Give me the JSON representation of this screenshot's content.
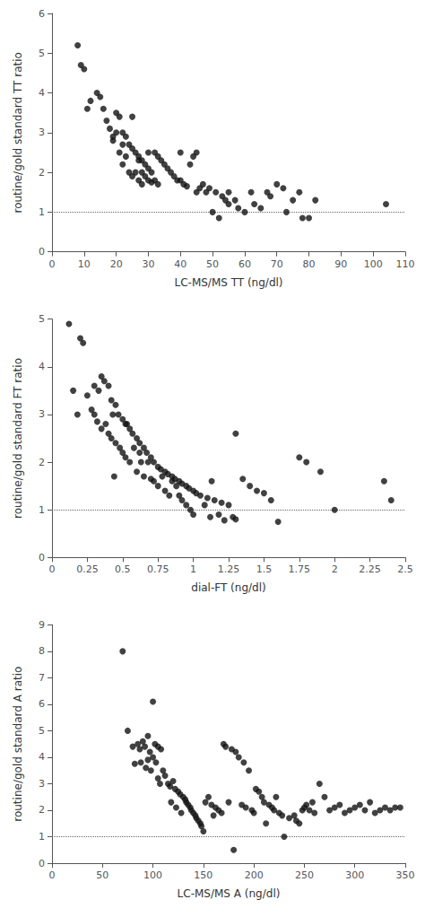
{
  "chart_data": [
    {
      "type": "scatter",
      "xlabel": "LC-MS/MS TT (ng/dl)",
      "ylabel": "routine/gold standard TT ratio",
      "xlim": [
        0,
        110
      ],
      "ylim": [
        0,
        6
      ],
      "xticks": [
        0,
        10,
        20,
        30,
        40,
        50,
        60,
        70,
        80,
        90,
        100,
        110
      ],
      "yticks": [
        0,
        1,
        2,
        3,
        4,
        5,
        6
      ],
      "hline": 1.0,
      "grid": false,
      "color": "#111111",
      "x": [
        8,
        9,
        10,
        11,
        12,
        14,
        15,
        16,
        17,
        18,
        19,
        19,
        20,
        20,
        21,
        21,
        22,
        22,
        22,
        23,
        23,
        24,
        24,
        25,
        25,
        25,
        26,
        26,
        27,
        27,
        27,
        28,
        28,
        28,
        29,
        29,
        30,
        30,
        30,
        31,
        31,
        32,
        32,
        33,
        33,
        34,
        35,
        36,
        37,
        38,
        39,
        40,
        40,
        41,
        42,
        43,
        44,
        45,
        45,
        46,
        47,
        48,
        49,
        50,
        51,
        52,
        53,
        54,
        55,
        55,
        57,
        58,
        60,
        62,
        63,
        65,
        67,
        68,
        70,
        72,
        73,
        75,
        77,
        78,
        80,
        82,
        104
      ],
      "values": [
        5.2,
        4.7,
        4.6,
        3.6,
        3.8,
        4.0,
        3.9,
        3.6,
        3.3,
        3.1,
        2.8,
        2.9,
        3.5,
        3.0,
        3.4,
        2.5,
        3.0,
        2.7,
        2.2,
        2.9,
        2.4,
        2.7,
        2.0,
        2.6,
        3.4,
        1.9,
        2.5,
        2.0,
        2.4,
        1.8,
        2.3,
        2.3,
        2.0,
        1.7,
        2.2,
        1.9,
        2.1,
        1.8,
        2.5,
        2.0,
        1.75,
        2.5,
        1.8,
        2.4,
        1.7,
        2.3,
        2.2,
        2.1,
        2.0,
        1.9,
        1.8,
        1.8,
        2.5,
        1.7,
        1.65,
        2.2,
        2.4,
        2.5,
        1.5,
        1.6,
        1.7,
        1.5,
        1.6,
        1.0,
        1.5,
        0.85,
        1.4,
        1.3,
        1.2,
        1.5,
        1.3,
        1.1,
        1.0,
        1.5,
        1.2,
        1.1,
        1.5,
        1.4,
        1.7,
        1.6,
        1.0,
        1.3,
        1.5,
        0.85,
        0.85,
        1.3,
        1.2
      ]
    },
    {
      "type": "scatter",
      "xlabel": "dial-FT (ng/dl)",
      "ylabel": "routine/gold standard FT ratio",
      "xlim": [
        0,
        2.5
      ],
      "ylim": [
        0,
        5
      ],
      "xticks": [
        0,
        0.25,
        0.5,
        0.75,
        1,
        1.25,
        1.5,
        1.75,
        2,
        2.25,
        2.5
      ],
      "yticks": [
        0,
        1,
        2,
        3,
        4,
        5
      ],
      "hline": 1.0,
      "grid": false,
      "color": "#111111",
      "x": [
        0.12,
        0.15,
        0.18,
        0.2,
        0.22,
        0.25,
        0.28,
        0.3,
        0.3,
        0.32,
        0.33,
        0.35,
        0.35,
        0.37,
        0.38,
        0.4,
        0.4,
        0.42,
        0.42,
        0.43,
        0.44,
        0.45,
        0.45,
        0.47,
        0.48,
        0.5,
        0.5,
        0.52,
        0.52,
        0.53,
        0.55,
        0.55,
        0.57,
        0.58,
        0.6,
        0.6,
        0.62,
        0.62,
        0.63,
        0.65,
        0.65,
        0.67,
        0.68,
        0.7,
        0.7,
        0.72,
        0.72,
        0.75,
        0.75,
        0.77,
        0.78,
        0.8,
        0.8,
        0.82,
        0.83,
        0.85,
        0.85,
        0.87,
        0.88,
        0.9,
        0.9,
        0.92,
        0.92,
        0.95,
        0.95,
        0.97,
        0.98,
        1.0,
        1.0,
        1.02,
        1.05,
        1.08,
        1.1,
        1.12,
        1.13,
        1.15,
        1.18,
        1.2,
        1.22,
        1.25,
        1.28,
        1.3,
        1.3,
        1.35,
        1.4,
        1.45,
        1.5,
        1.55,
        1.6,
        1.75,
        1.8,
        1.9,
        2.0,
        2.35,
        2.4
      ],
      "values": [
        4.9,
        3.5,
        3.0,
        4.6,
        4.5,
        3.4,
        3.1,
        3.6,
        3.0,
        2.85,
        3.5,
        3.8,
        2.7,
        3.7,
        2.8,
        3.6,
        2.6,
        3.3,
        2.5,
        3.0,
        1.7,
        3.2,
        2.4,
        3.0,
        2.3,
        2.9,
        2.2,
        2.8,
        2.1,
        2.8,
        2.7,
        2.0,
        2.6,
        2.3,
        2.5,
        1.8,
        2.4,
        2.2,
        2.0,
        2.3,
        1.7,
        2.2,
        2.0,
        2.1,
        1.65,
        2.0,
        1.6,
        1.9,
        1.5,
        1.85,
        1.7,
        1.8,
        1.4,
        1.75,
        1.3,
        1.7,
        1.6,
        1.65,
        1.5,
        1.6,
        1.3,
        1.55,
        1.2,
        1.5,
        1.1,
        1.45,
        1.0,
        1.4,
        0.9,
        1.35,
        1.3,
        1.1,
        1.25,
        0.85,
        1.6,
        1.2,
        0.9,
        1.15,
        0.78,
        1.1,
        0.85,
        0.8,
        2.6,
        1.65,
        1.5,
        1.4,
        1.35,
        1.2,
        0.75,
        2.1,
        2.0,
        1.8,
        1.0,
        1.6,
        1.2
      ]
    },
    {
      "type": "scatter",
      "xlabel": "LC-MS/MS A (ng/dl)",
      "ylabel": "routine/gold standard A ratio",
      "xlim": [
        0,
        350
      ],
      "ylim": [
        0,
        9
      ],
      "xticks": [
        0,
        50,
        100,
        150,
        200,
        250,
        300,
        350
      ],
      "yticks": [
        0,
        1,
        2,
        3,
        4,
        5,
        6,
        7,
        8,
        9
      ],
      "hline": 1.0,
      "grid": false,
      "color": "#111111",
      "x": [
        70,
        75,
        80,
        82,
        85,
        87,
        88,
        90,
        92,
        93,
        95,
        95,
        97,
        98,
        100,
        100,
        102,
        103,
        105,
        105,
        107,
        108,
        110,
        112,
        115,
        117,
        118,
        120,
        122,
        123,
        125,
        127,
        128,
        130,
        132,
        133,
        135,
        137,
        138,
        140,
        142,
        143,
        145,
        147,
        148,
        150,
        152,
        155,
        158,
        160,
        162,
        165,
        168,
        170,
        172,
        175,
        178,
        180,
        182,
        185,
        188,
        190,
        192,
        195,
        198,
        200,
        202,
        205,
        208,
        210,
        212,
        215,
        218,
        220,
        222,
        225,
        228,
        230,
        235,
        240,
        242,
        245,
        248,
        250,
        252,
        255,
        258,
        260,
        265,
        270,
        275,
        280,
        285,
        290,
        295,
        300,
        305,
        310,
        315,
        320,
        325,
        330,
        335,
        340,
        345
      ],
      "values": [
        8.0,
        5.0,
        4.4,
        3.75,
        4.5,
        4.3,
        3.8,
        4.6,
        4.4,
        3.6,
        4.8,
        3.9,
        4.2,
        3.5,
        6.1,
        4.0,
        4.5,
        3.8,
        3.2,
        4.4,
        3.0,
        4.3,
        3.5,
        3.3,
        3.0,
        2.9,
        2.3,
        3.1,
        2.8,
        2.1,
        2.7,
        2.6,
        1.9,
        2.5,
        2.4,
        2.3,
        2.2,
        2.1,
        2.0,
        1.9,
        1.8,
        1.7,
        1.6,
        1.5,
        1.4,
        1.2,
        2.3,
        2.5,
        2.2,
        1.8,
        2.1,
        2.0,
        1.9,
        4.5,
        4.4,
        2.3,
        4.3,
        0.5,
        4.2,
        4.0,
        2.2,
        3.8,
        2.1,
        3.5,
        2.0,
        1.9,
        2.8,
        2.7,
        2.5,
        2.3,
        1.5,
        2.2,
        2.1,
        2.0,
        2.5,
        1.9,
        1.8,
        1.0,
        1.7,
        1.8,
        1.6,
        1.5,
        2.0,
        2.1,
        2.2,
        2.0,
        2.3,
        1.9,
        3.0,
        2.5,
        2.0,
        2.1,
        2.2,
        1.9,
        2.0,
        2.1,
        2.2,
        2.0,
        2.3,
        1.9,
        2.0,
        2.1,
        2.0,
        2.1,
        2.1
      ]
    }
  ]
}
